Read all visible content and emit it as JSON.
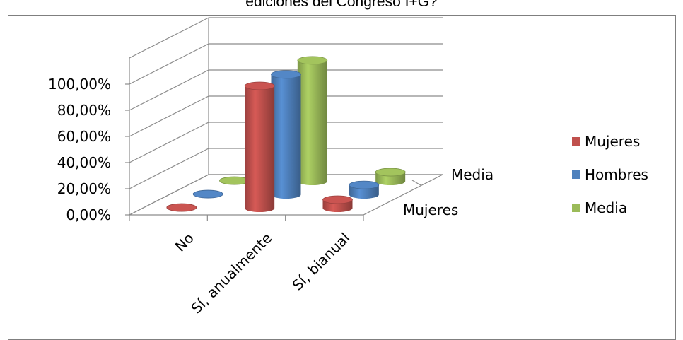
{
  "chart_data": {
    "type": "bar",
    "title": "ediciones del Congreso I+G?",
    "categories": [
      "No",
      "Sí, anualmente",
      "Sí, bianual"
    ],
    "series": [
      {
        "name": "Mujeres",
        "color": "#c0504d",
        "values": [
          0.5,
          93.5,
          6.5
        ]
      },
      {
        "name": "Hombres",
        "color": "#4f81bd",
        "values": [
          0.5,
          92.0,
          7.5
        ]
      },
      {
        "name": "Media",
        "color": "#9bbb59",
        "values": [
          0.5,
          92.5,
          7.0
        ]
      }
    ],
    "depth_labels": [
      "Media",
      "Mujeres"
    ],
    "y_ticks": [
      "0,00%",
      "20,00%",
      "40,00%",
      "60,00%",
      "80,00%",
      "100,00%"
    ],
    "ylim": [
      0,
      100
    ],
    "legend": "right",
    "grid": true
  }
}
